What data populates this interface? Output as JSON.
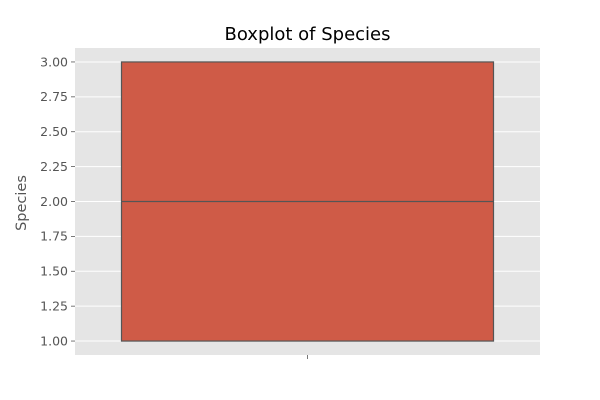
{
  "chart_data": {
    "type": "box",
    "title": "Boxplot of Species",
    "xlabel": "",
    "ylabel": "Species",
    "ylim": [
      0.9,
      3.1
    ],
    "yticks": [
      1.0,
      1.25,
      1.5,
      1.75,
      2.0,
      2.25,
      2.5,
      2.75,
      3.0
    ],
    "ytick_labels": [
      "1.00",
      "1.25",
      "1.50",
      "1.75",
      "2.00",
      "2.25",
      "2.50",
      "2.75",
      "3.00"
    ],
    "grid": true,
    "series": [
      {
        "min": 1.0,
        "q1": 1.0,
        "median": 2.0,
        "q3": 3.0,
        "max": 3.0
      }
    ],
    "colors": {
      "box_fill": "#cf5b47",
      "box_edge": "#555555",
      "plot_background": "#e5e5e5",
      "grid": "#ffffff"
    }
  }
}
